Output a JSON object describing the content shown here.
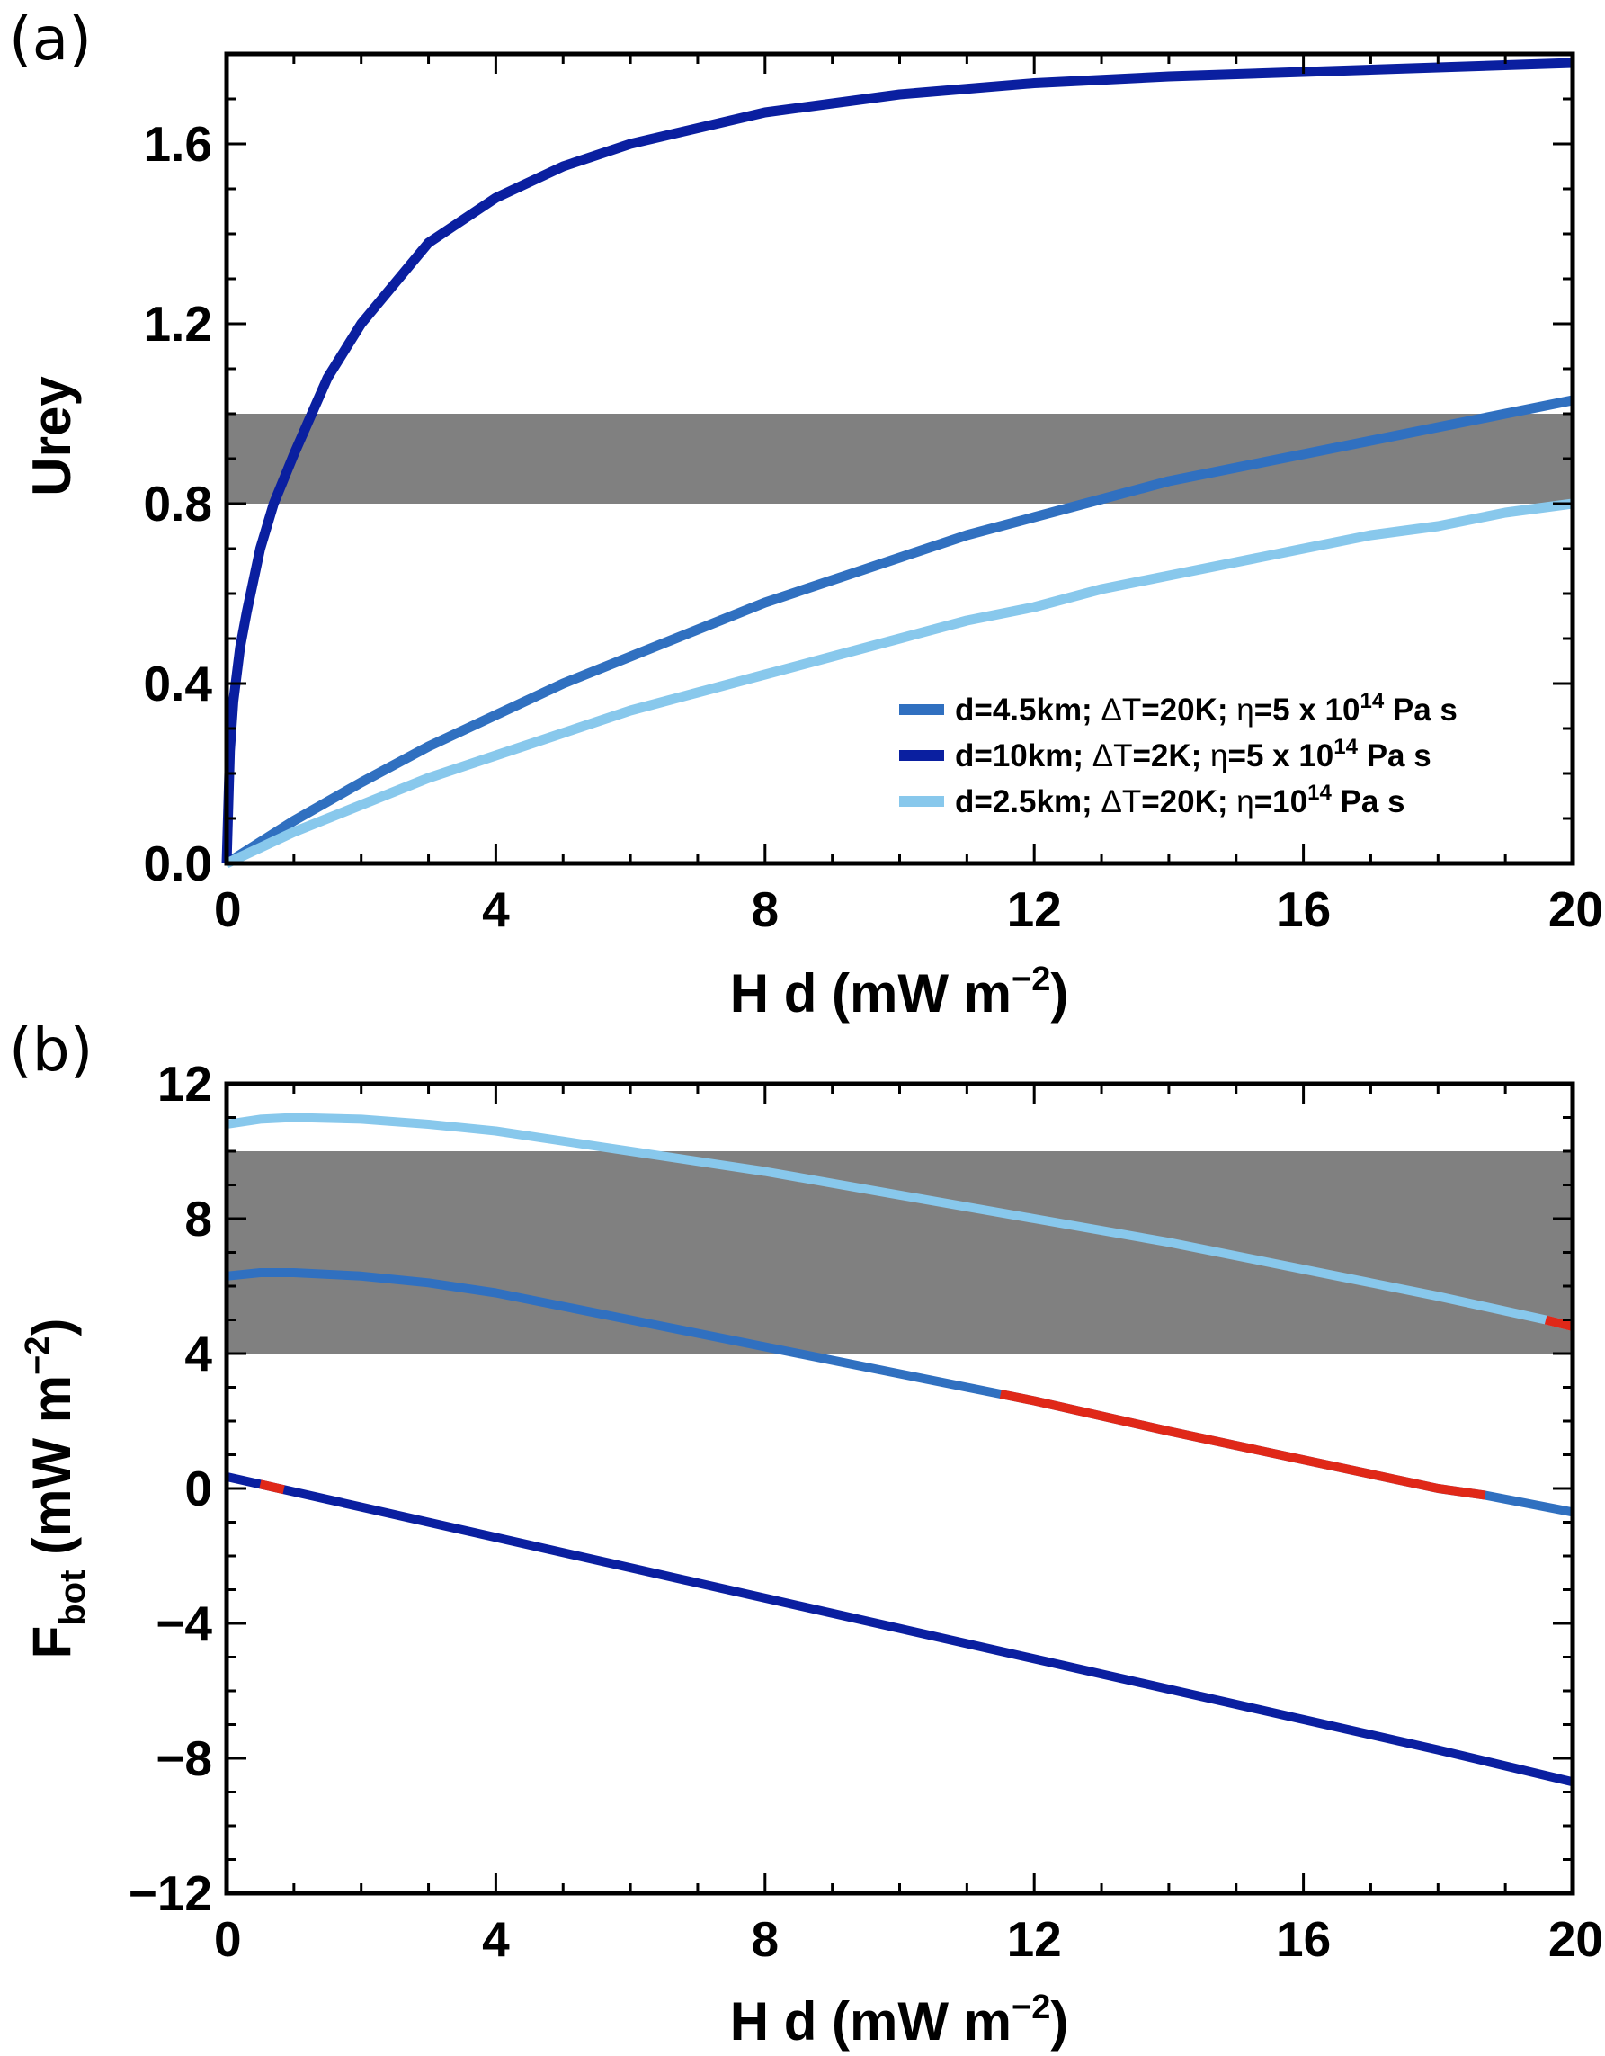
{
  "colors": {
    "band": "#808080",
    "series_mid": "#3070c0",
    "series_dark": "#0a1fa0",
    "series_light": "#88c8ec",
    "highlight": "#e02818"
  },
  "chart_data": [
    {
      "type": "line",
      "panel_label": "(a)",
      "xlabel": "H d (mW m",
      "xlabel_sup": "−2",
      "xlabel_end": ")",
      "ylabel": "Urey",
      "xlim": [
        0,
        20
      ],
      "ylim": [
        0,
        1.8
      ],
      "xticks": [
        0,
        4,
        8,
        12,
        16,
        20
      ],
      "xtick_labels": [
        "0",
        "4",
        "8",
        "12",
        "16",
        "20"
      ],
      "yticks": [
        0,
        0.4,
        0.8,
        1.2,
        1.6
      ],
      "ytick_labels": [
        "0.0",
        "0.4",
        "0.8",
        "1.2",
        "1.6"
      ],
      "band": [
        0.8,
        1.0
      ],
      "legend_position": "lower-right",
      "series": [
        {
          "name_parts": [
            "d=4.5km; ",
            "ΔT",
            "=20K; ",
            "η",
            "=5 x 10",
            "14",
            " Pa s"
          ],
          "color_key": "series_mid",
          "x": [
            0,
            1,
            2,
            3,
            4,
            5,
            6,
            7,
            8,
            9,
            10,
            11,
            12,
            13,
            14,
            15,
            16,
            17,
            18,
            19,
            20
          ],
          "y": [
            0,
            0.095,
            0.18,
            0.26,
            0.33,
            0.4,
            0.46,
            0.52,
            0.58,
            0.63,
            0.68,
            0.73,
            0.77,
            0.81,
            0.85,
            0.88,
            0.91,
            0.94,
            0.97,
            1.0,
            1.03
          ]
        },
        {
          "name_parts": [
            "d=10km;  ",
            "ΔT",
            "=2K;  ",
            "η",
            "=5 x 10",
            "14",
            " Pa s"
          ],
          "color_key": "series_dark",
          "x": [
            0,
            0.05,
            0.1,
            0.2,
            0.3,
            0.5,
            0.7,
            1,
            1.5,
            2,
            3,
            4,
            5,
            6,
            8,
            10,
            12,
            14,
            16,
            18,
            20
          ],
          "y": [
            0,
            0.25,
            0.36,
            0.48,
            0.56,
            0.7,
            0.8,
            0.91,
            1.08,
            1.2,
            1.38,
            1.48,
            1.55,
            1.6,
            1.67,
            1.71,
            1.735,
            1.75,
            1.76,
            1.77,
            1.78
          ]
        },
        {
          "name_parts": [
            "d=2.5km; ",
            "ΔT",
            "=20K; ",
            "η",
            "=10",
            "14",
            " Pa s"
          ],
          "color_key": "series_light",
          "x": [
            0,
            1,
            2,
            3,
            4,
            5,
            6,
            7,
            8,
            9,
            10,
            11,
            12,
            13,
            14,
            15,
            16,
            17,
            18,
            19,
            20
          ],
          "y": [
            0,
            0.07,
            0.13,
            0.19,
            0.24,
            0.29,
            0.34,
            0.38,
            0.42,
            0.46,
            0.5,
            0.54,
            0.57,
            0.61,
            0.64,
            0.67,
            0.7,
            0.73,
            0.75,
            0.78,
            0.8
          ]
        }
      ]
    },
    {
      "type": "line",
      "panel_label": "(b)",
      "xlabel": "H d (mW m",
      "xlabel_sup": "−2",
      "xlabel_end": ")",
      "ylabel": "F",
      "ylabel_sub": "bot",
      "ylabel_mid": " (mW m",
      "ylabel_sup": "−2",
      "ylabel_end": ")",
      "xlim": [
        0,
        20
      ],
      "ylim": [
        -12,
        12
      ],
      "xticks": [
        0,
        4,
        8,
        12,
        16,
        20
      ],
      "xtick_labels": [
        "0",
        "4",
        "8",
        "12",
        "16",
        "20"
      ],
      "yticks": [
        -12,
        -8,
        -4,
        0,
        4,
        8,
        12
      ],
      "ytick_labels": [
        "−12",
        "−8",
        "−4",
        "0",
        "4",
        "8",
        "12"
      ],
      "band": [
        4,
        10
      ],
      "series": [
        {
          "color_key": "series_light",
          "x": [
            0,
            0.5,
            1,
            2,
            3,
            4,
            6,
            8,
            10,
            12,
            14,
            16,
            18,
            19.6,
            20
          ],
          "y": [
            10.8,
            10.95,
            11.0,
            10.95,
            10.8,
            10.6,
            10.0,
            9.4,
            8.7,
            8.0,
            7.3,
            6.5,
            5.7,
            5.0,
            4.8
          ],
          "highlight_x": [
            19.6,
            20
          ]
        },
        {
          "color_key": "series_mid",
          "x": [
            0,
            0.5,
            1,
            2,
            3,
            4,
            6,
            8,
            10,
            11.5,
            12,
            14,
            16,
            18,
            18.7,
            20
          ],
          "y": [
            6.3,
            6.4,
            6.4,
            6.3,
            6.1,
            5.8,
            5.0,
            4.2,
            3.4,
            2.8,
            2.6,
            1.7,
            0.85,
            0.0,
            -0.2,
            -0.7
          ],
          "highlight_x": [
            11.5,
            18.7
          ]
        },
        {
          "color_key": "series_dark",
          "x": [
            0,
            2,
            4,
            6,
            8,
            10,
            12,
            14,
            16,
            18,
            20
          ],
          "y": [
            0.35,
            -0.55,
            -1.45,
            -2.35,
            -3.25,
            -4.15,
            -5.05,
            -5.95,
            -6.85,
            -7.75,
            -8.7
          ],
          "highlight_x": [
            0.5,
            0.85
          ]
        }
      ]
    }
  ]
}
